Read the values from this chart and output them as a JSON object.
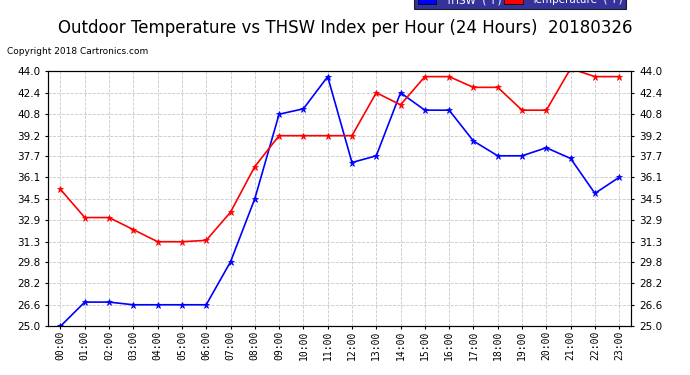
{
  "title": "Outdoor Temperature vs THSW Index per Hour (24 Hours)  20180326",
  "copyright": "Copyright 2018 Cartronics.com",
  "x_labels": [
    "00:00",
    "01:00",
    "02:00",
    "03:00",
    "04:00",
    "05:00",
    "06:00",
    "07:00",
    "08:00",
    "09:00",
    "10:00",
    "11:00",
    "12:00",
    "13:00",
    "14:00",
    "15:00",
    "16:00",
    "17:00",
    "18:00",
    "19:00",
    "20:00",
    "21:00",
    "22:00",
    "23:00"
  ],
  "thsw_values": [
    25.0,
    26.8,
    26.8,
    26.6,
    26.6,
    26.6,
    26.6,
    29.8,
    34.5,
    40.8,
    41.2,
    43.6,
    37.2,
    37.7,
    42.4,
    41.1,
    41.1,
    38.8,
    37.7,
    37.7,
    38.3,
    37.5,
    34.9,
    36.1
  ],
  "temp_values": [
    35.2,
    33.1,
    33.1,
    32.2,
    31.3,
    31.3,
    31.4,
    33.5,
    36.9,
    39.2,
    39.2,
    39.2,
    39.2,
    42.4,
    41.5,
    43.6,
    43.6,
    42.8,
    42.8,
    41.1,
    41.1,
    44.2,
    43.6,
    43.6
  ],
  "ylim": [
    25.0,
    44.0
  ],
  "yticks": [
    25.0,
    26.6,
    28.2,
    29.8,
    31.3,
    32.9,
    34.5,
    36.1,
    37.7,
    39.2,
    40.8,
    42.4,
    44.0
  ],
  "thsw_color": "#0000ff",
  "temp_color": "#ff0000",
  "bg_color": "#ffffff",
  "grid_color": "#c8c8c8",
  "title_fontsize": 12,
  "legend_thsw_label": "THSW  (°F)",
  "legend_temp_label": "Temperature  (°F)"
}
